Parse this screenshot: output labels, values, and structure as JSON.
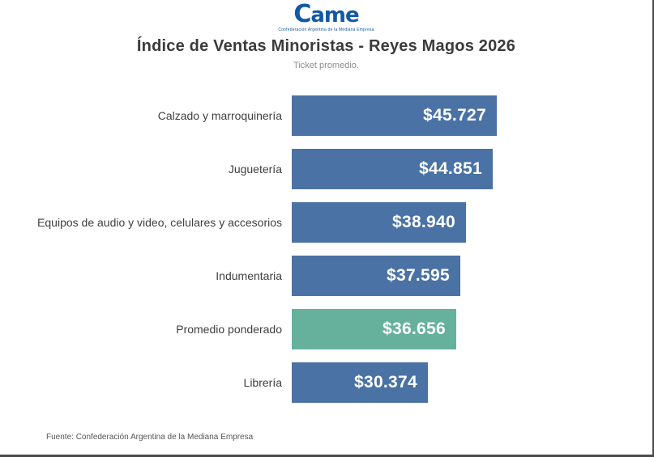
{
  "logo": {
    "text": "Came",
    "subtext": "Confederación Argentina de la Mediana Empresa"
  },
  "header": {
    "title": "Índice de Ventas Minoristas - Reyes Magos 2026",
    "subtitle": "Ticket promedio."
  },
  "footer": {
    "source": "Fuente: Confederación Argentina de la Mediana Empresa"
  },
  "chart_data": {
    "type": "bar",
    "orientation": "horizontal",
    "title": "Índice de Ventas Minoristas - Reyes Magos 2026",
    "subtitle": "Ticket promedio.",
    "categories": [
      "Calzado y marroquinería",
      "Juguetería",
      "Equipos de audio y video, celulares y accesorios",
      "Indumentaria",
      "Promedio ponderado",
      "Librería"
    ],
    "values": [
      45727,
      44851,
      38940,
      37595,
      36656,
      30374
    ],
    "value_labels": [
      "$45.727",
      "$44.851",
      "$38.940",
      "$37.595",
      "$36.656",
      "$30.374"
    ],
    "highlight_index": 4,
    "colors": {
      "bar": "#4a72a4",
      "highlight": "#65b19c",
      "value_text": "#ffffff",
      "logo_blue": "#1258a8"
    },
    "xlim": [
      0,
      45727
    ],
    "grid": false,
    "legend": "none",
    "value_labels_position": "inside-end"
  }
}
